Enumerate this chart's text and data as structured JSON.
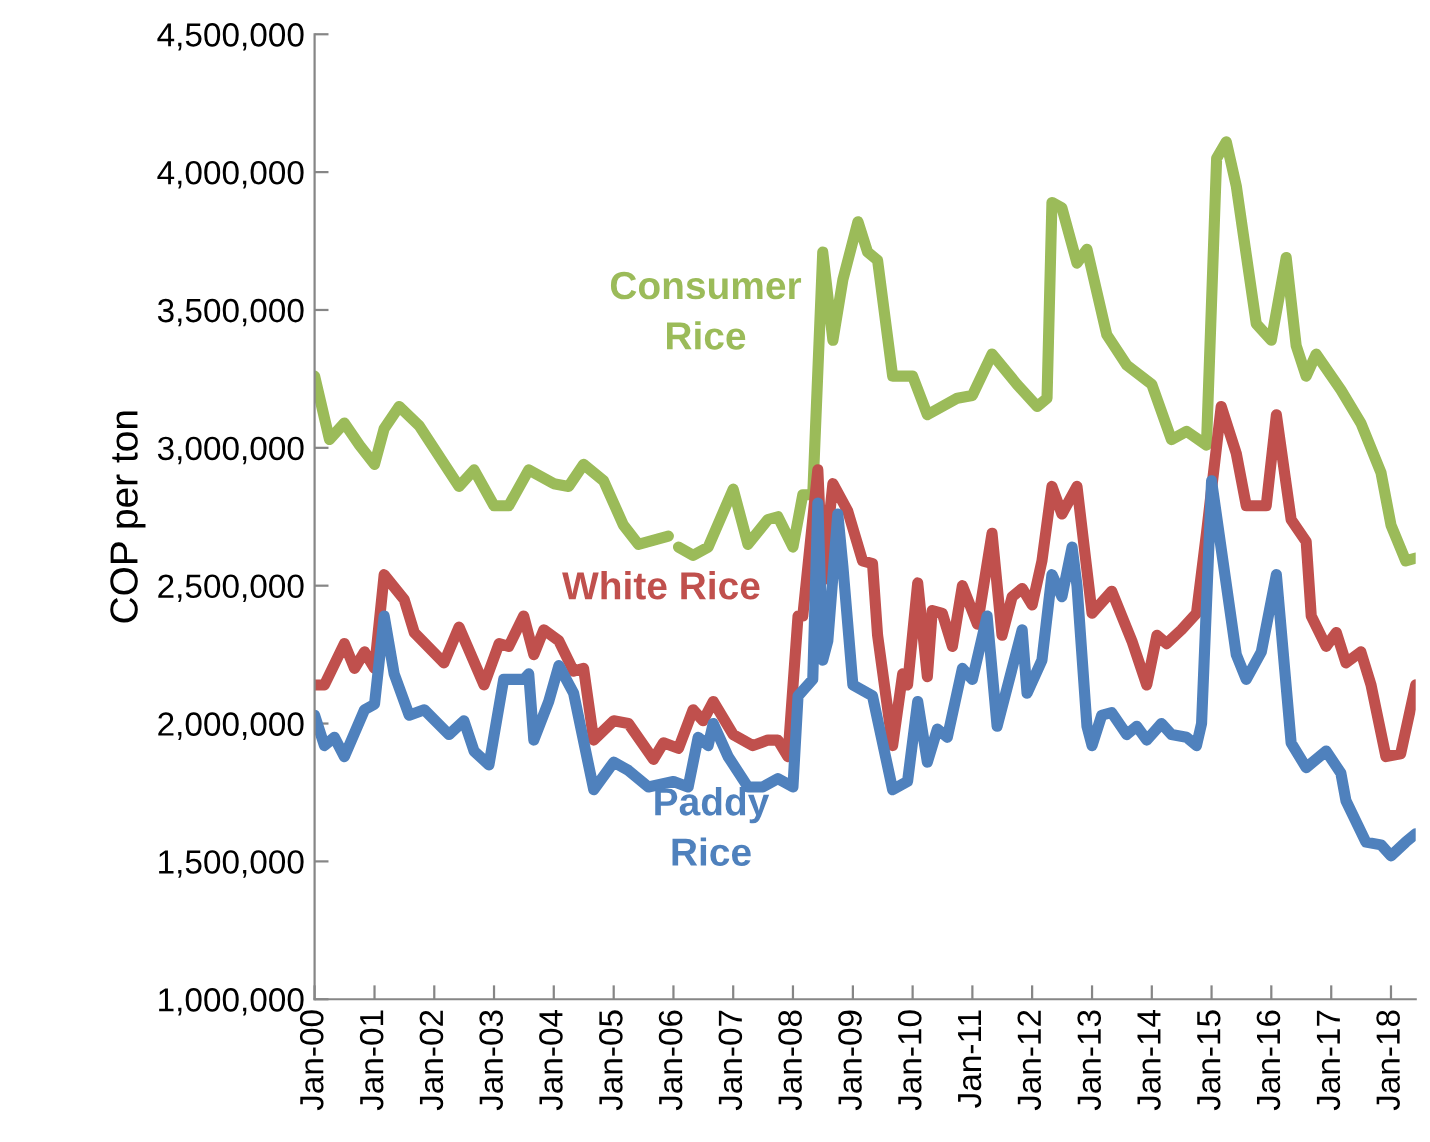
{
  "chart_data": {
    "type": "line",
    "ylabel": "COP per ton",
    "legend": false,
    "grid": false,
    "marker": "none",
    "line_style": "solid",
    "xlim": [
      "2000-01",
      "2018-06"
    ],
    "xticks": [
      {
        "value": "2000-01",
        "label": "Jan-00"
      },
      {
        "value": "2001-01",
        "label": "Jan-01"
      },
      {
        "value": "2002-01",
        "label": "Jan-02"
      },
      {
        "value": "2003-01",
        "label": "Jan-03"
      },
      {
        "value": "2004-01",
        "label": "Jan-04"
      },
      {
        "value": "2005-01",
        "label": "Jan-05"
      },
      {
        "value": "2006-01",
        "label": "Jan-06"
      },
      {
        "value": "2007-01",
        "label": "Jan-07"
      },
      {
        "value": "2008-01",
        "label": "Jan-08"
      },
      {
        "value": "2009-01",
        "label": "Jan-09"
      },
      {
        "value": "2010-01",
        "label": "Jan-10"
      },
      {
        "value": "2011-01",
        "label": "Jan-11"
      },
      {
        "value": "2012-01",
        "label": "Jan-12"
      },
      {
        "value": "2013-01",
        "label": "Jan-13"
      },
      {
        "value": "2014-01",
        "label": "Jan-14"
      },
      {
        "value": "2015-01",
        "label": "Jan-15"
      },
      {
        "value": "2016-01",
        "label": "Jan-16"
      },
      {
        "value": "2017-01",
        "label": "Jan-17"
      },
      {
        "value": "2018-01",
        "label": "Jan-18"
      }
    ],
    "ylim": [
      1000000,
      4500000
    ],
    "yticks": [
      {
        "value": 1000000,
        "label": "1,000,000"
      },
      {
        "value": 1500000,
        "label": "1,500,000"
      },
      {
        "value": 2000000,
        "label": "2,000,000"
      },
      {
        "value": 2500000,
        "label": "2,500,000"
      },
      {
        "value": 3000000,
        "label": "3,000,000"
      },
      {
        "value": 3500000,
        "label": "3,500,000"
      },
      {
        "value": 4000000,
        "label": "4,000,000"
      },
      {
        "value": 4500000,
        "label": "4,500,000"
      }
    ],
    "series": [
      {
        "name": "Consumer Rice",
        "color": "#9bbb59",
        "x": [
          "2000-01",
          "2000-04",
          "2000-07",
          "2000-10",
          "2001-01",
          "2001-03",
          "2001-06",
          "2001-10",
          "2002-06",
          "2002-09",
          "2003-01",
          "2003-04",
          "2003-08",
          "2004-01",
          "2004-04",
          "2004-07",
          "2004-11",
          "2005-03",
          "2005-06",
          "2005-12",
          "2006-01",
          "2006-02",
          "2006-05",
          "2006-08",
          "2007-01",
          "2007-04",
          "2007-08",
          "2007-10",
          "2008-01",
          "2008-03",
          "2008-05",
          "2008-07",
          "2008-09",
          "2008-11",
          "2009-02",
          "2009-04",
          "2009-06",
          "2009-09",
          "2010-01",
          "2010-04",
          "2010-10",
          "2011-01",
          "2011-05",
          "2011-10",
          "2012-02",
          "2012-04",
          "2012-05",
          "2012-07",
          "2012-10",
          "2012-12",
          "2013-04",
          "2013-08",
          "2014-01",
          "2014-05",
          "2014-08",
          "2014-12",
          "2015-02",
          "2015-04",
          "2015-06",
          "2015-10",
          "2016-01",
          "2016-04",
          "2016-06",
          "2016-08",
          "2016-10",
          "2017-03",
          "2017-07",
          "2017-11",
          "2018-01",
          "2018-04",
          "2018-06"
        ],
        "values": [
          3260000,
          3030000,
          3090000,
          3010000,
          2940000,
          3070000,
          3150000,
          3080000,
          2860000,
          2920000,
          2790000,
          2790000,
          2920000,
          2870000,
          2860000,
          2940000,
          2880000,
          2720000,
          2650000,
          2680000,
          null,
          2640000,
          2610000,
          2640000,
          2850000,
          2650000,
          2740000,
          2750000,
          2640000,
          2830000,
          2830000,
          3710000,
          3390000,
          3610000,
          3820000,
          3710000,
          3680000,
          3260000,
          3260000,
          3120000,
          3180000,
          3190000,
          3340000,
          3230000,
          3150000,
          3180000,
          3890000,
          3870000,
          3670000,
          3720000,
          3410000,
          3300000,
          3230000,
          3030000,
          3060000,
          3010000,
          4050000,
          4110000,
          3950000,
          3450000,
          3390000,
          3690000,
          3370000,
          3260000,
          3340000,
          3210000,
          3090000,
          2910000,
          2720000,
          2590000,
          2600000
        ]
      },
      {
        "name": "White Rice",
        "color": "#c0504d",
        "x": [
          "2000-01",
          "2000-03",
          "2000-07",
          "2000-09",
          "2000-11",
          "2001-01",
          "2001-03",
          "2001-07",
          "2001-09",
          "2002-03",
          "2002-06",
          "2002-11",
          "2003-02",
          "2003-04",
          "2003-07",
          "2003-09",
          "2003-11",
          "2004-02",
          "2004-05",
          "2004-07",
          "2004-09",
          "2005-01",
          "2005-04",
          "2005-09",
          "2005-11",
          "2006-02",
          "2006-05",
          "2006-07",
          "2006-09",
          "2007-01",
          "2007-05",
          "2007-08",
          "2007-10",
          "2007-12",
          "2008-02",
          "2008-03",
          "2008-06",
          "2008-07",
          "2008-09",
          "2008-12",
          "2009-03",
          "2009-05",
          "2009-06",
          "2009-09",
          "2009-11",
          "2009-12",
          "2010-02",
          "2010-04",
          "2010-05",
          "2010-07",
          "2010-09",
          "2010-11",
          "2011-02",
          "2011-05",
          "2011-07",
          "2011-09",
          "2011-11",
          "2012-01",
          "2012-03",
          "2012-05",
          "2012-07",
          "2012-10",
          "2013-01",
          "2013-05",
          "2013-09",
          "2013-12",
          "2014-02",
          "2014-04",
          "2014-07",
          "2014-10",
          "2014-12",
          "2015-03",
          "2015-06",
          "2015-08",
          "2015-12",
          "2016-02",
          "2016-05",
          "2016-08",
          "2016-09",
          "2016-12",
          "2017-02",
          "2017-04",
          "2017-07",
          "2017-09",
          "2017-12",
          "2018-03",
          "2018-06"
        ],
        "values": [
          2140000,
          2140000,
          2290000,
          2200000,
          2260000,
          2200000,
          2540000,
          2450000,
          2330000,
          2220000,
          2350000,
          2140000,
          2290000,
          2280000,
          2390000,
          2250000,
          2340000,
          2300000,
          2190000,
          2200000,
          1940000,
          2010000,
          2000000,
          1870000,
          1930000,
          1910000,
          2050000,
          2010000,
          2080000,
          1960000,
          1920000,
          1940000,
          1940000,
          1880000,
          2390000,
          2390000,
          2920000,
          2520000,
          2870000,
          2770000,
          2590000,
          2580000,
          2320000,
          1920000,
          2180000,
          2140000,
          2510000,
          2170000,
          2410000,
          2400000,
          2280000,
          2500000,
          2360000,
          2690000,
          2320000,
          2460000,
          2490000,
          2430000,
          2590000,
          2860000,
          2760000,
          2860000,
          2400000,
          2480000,
          2300000,
          2140000,
          2320000,
          2290000,
          2340000,
          2400000,
          2690000,
          3150000,
          2980000,
          2790000,
          2790000,
          3120000,
          2740000,
          2660000,
          2390000,
          2280000,
          2330000,
          2220000,
          2260000,
          2140000,
          1880000,
          1890000,
          2140000
        ]
      },
      {
        "name": "Paddy Rice",
        "color": "#4f81bd",
        "x": [
          "2000-01",
          "2000-03",
          "2000-05",
          "2000-07",
          "2000-11",
          "2001-01",
          "2001-03",
          "2001-05",
          "2001-08",
          "2001-11",
          "2002-04",
          "2002-07",
          "2002-09",
          "2002-12",
          "2003-03",
          "2003-07",
          "2003-08",
          "2003-09",
          "2003-12",
          "2004-02",
          "2004-05",
          "2004-09",
          "2005-01",
          "2005-04",
          "2005-08",
          "2006-01",
          "2006-04",
          "2006-06",
          "2006-08",
          "2006-09",
          "2006-12",
          "2007-04",
          "2007-07",
          "2007-10",
          "2008-01",
          "2008-02",
          "2008-05",
          "2008-06",
          "2008-07",
          "2008-08",
          "2008-10",
          "2008-11",
          "2009-01",
          "2009-05",
          "2009-09",
          "2009-12",
          "2010-02",
          "2010-04",
          "2010-06",
          "2010-08",
          "2010-11",
          "2011-01",
          "2011-04",
          "2011-06",
          "2011-11",
          "2011-12",
          "2012-03",
          "2012-05",
          "2012-07",
          "2012-09",
          "2012-10",
          "2012-12",
          "2013-01",
          "2013-03",
          "2013-05",
          "2013-08",
          "2013-10",
          "2013-12",
          "2014-03",
          "2014-05",
          "2014-08",
          "2014-10",
          "2014-11",
          "2015-01",
          "2015-06",
          "2015-08",
          "2015-11",
          "2016-02",
          "2016-05",
          "2016-08",
          "2016-12",
          "2017-03",
          "2017-04",
          "2017-08",
          "2017-11",
          "2018-01",
          "2018-04",
          "2018-06"
        ],
        "values": [
          2030000,
          1920000,
          1950000,
          1880000,
          2050000,
          2070000,
          2390000,
          2180000,
          2030000,
          2050000,
          1960000,
          2010000,
          1900000,
          1850000,
          2160000,
          2160000,
          2180000,
          1940000,
          2080000,
          2210000,
          2110000,
          1760000,
          1860000,
          1830000,
          1770000,
          1790000,
          1770000,
          1950000,
          1920000,
          2000000,
          1880000,
          1770000,
          1770000,
          1800000,
          1770000,
          2100000,
          2160000,
          2800000,
          2230000,
          2300000,
          2760000,
          2570000,
          2140000,
          2100000,
          1760000,
          1790000,
          2080000,
          1860000,
          1980000,
          1950000,
          2200000,
          2160000,
          2390000,
          1990000,
          2340000,
          2110000,
          2230000,
          2540000,
          2460000,
          2640000,
          2500000,
          1990000,
          1920000,
          2030000,
          2040000,
          1960000,
          1990000,
          1940000,
          2000000,
          1960000,
          1950000,
          1920000,
          2000000,
          2880000,
          2250000,
          2160000,
          2260000,
          2540000,
          1930000,
          1840000,
          1900000,
          1820000,
          1720000,
          1570000,
          1560000,
          1520000,
          1570000,
          1600000
        ]
      }
    ]
  }
}
